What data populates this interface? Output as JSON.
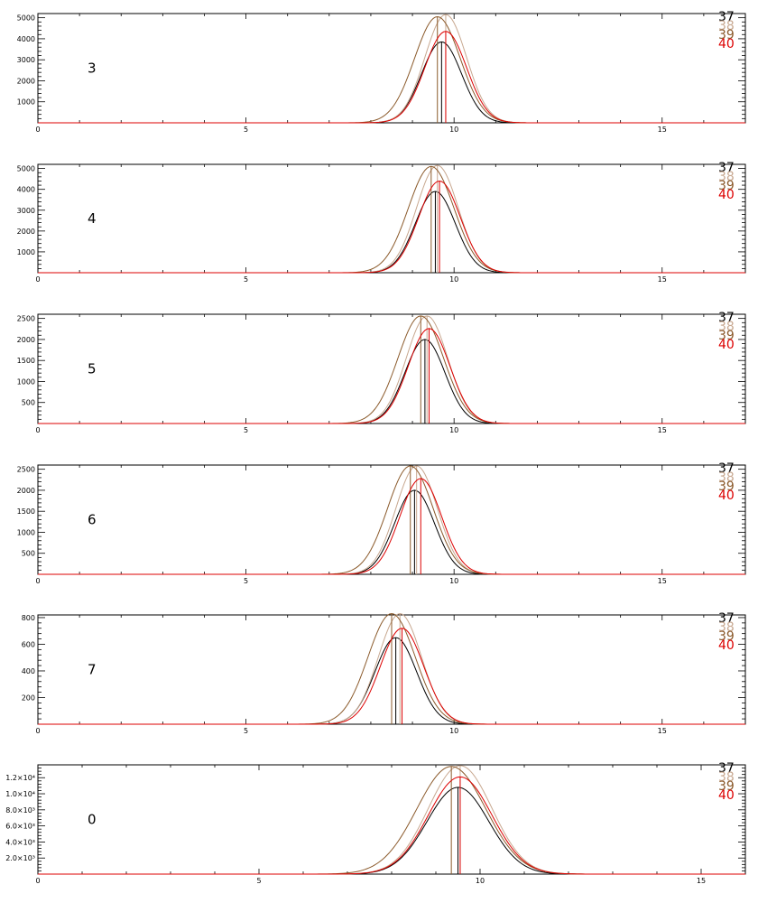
{
  "chart_data": [
    {
      "type": "line",
      "panel_label": "3",
      "xlim": [
        0,
        17
      ],
      "ylim": [
        0,
        5200
      ],
      "xticks": [
        {
          "value": 0,
          "label": "0"
        },
        {
          "value": 5,
          "label": "5"
        },
        {
          "value": 10,
          "label": "10"
        },
        {
          "value": 15,
          "label": "15"
        }
      ],
      "yticks": [
        {
          "value": 1000,
          "label": "1000"
        },
        {
          "value": 2000,
          "label": "2000"
        },
        {
          "value": 3000,
          "label": "3000"
        },
        {
          "value": 4000,
          "label": "4000"
        },
        {
          "value": 5000,
          "label": "5000"
        }
      ],
      "series": [
        {
          "name": "37",
          "color": "#000000",
          "peak_x": 9.7,
          "peak_y": 3850,
          "sigma": 0.48,
          "start_x": 2.5
        },
        {
          "name": "38",
          "color": "#c8a890",
          "peak_x": 9.8,
          "peak_y": 5150,
          "sigma": 0.5,
          "start_x": 2.5
        },
        {
          "name": "39",
          "color": "#8b5a2b",
          "peak_x": 9.6,
          "peak_y": 5050,
          "sigma": 0.55,
          "start_x": 2.5
        },
        {
          "name": "40",
          "color": "#dd0000",
          "peak_x": 9.8,
          "peak_y": 4350,
          "sigma": 0.5,
          "start_x": 0
        }
      ]
    },
    {
      "type": "line",
      "panel_label": "4",
      "xlim": [
        0,
        17
      ],
      "ylim": [
        0,
        5200
      ],
      "xticks": [
        {
          "value": 0,
          "label": "0"
        },
        {
          "value": 5,
          "label": "5"
        },
        {
          "value": 10,
          "label": "10"
        },
        {
          "value": 15,
          "label": "15"
        }
      ],
      "yticks": [
        {
          "value": 1000,
          "label": "1000"
        },
        {
          "value": 2000,
          "label": "2000"
        },
        {
          "value": 3000,
          "label": "3000"
        },
        {
          "value": 4000,
          "label": "4000"
        },
        {
          "value": 5000,
          "label": "5000"
        }
      ],
      "series": [
        {
          "name": "37",
          "color": "#000000",
          "peak_x": 9.55,
          "peak_y": 3900,
          "sigma": 0.48,
          "start_x": 7.2
        },
        {
          "name": "38",
          "color": "#c8a890",
          "peak_x": 9.6,
          "peak_y": 5150,
          "sigma": 0.5,
          "start_x": 7.2
        },
        {
          "name": "39",
          "color": "#8b5a2b",
          "peak_x": 9.45,
          "peak_y": 5100,
          "sigma": 0.55,
          "start_x": 7.2
        },
        {
          "name": "40",
          "color": "#dd0000",
          "peak_x": 9.65,
          "peak_y": 4400,
          "sigma": 0.5,
          "start_x": 0
        }
      ]
    },
    {
      "type": "line",
      "panel_label": "5",
      "xlim": [
        0,
        17
      ],
      "ylim": [
        0,
        2600
      ],
      "xticks": [
        {
          "value": 0,
          "label": "0"
        },
        {
          "value": 5,
          "label": "5"
        },
        {
          "value": 10,
          "label": "10"
        },
        {
          "value": 15,
          "label": "15"
        }
      ],
      "yticks": [
        {
          "value": 500,
          "label": "500"
        },
        {
          "value": 1000,
          "label": "1000"
        },
        {
          "value": 1500,
          "label": "1500"
        },
        {
          "value": 2000,
          "label": "2000"
        },
        {
          "value": 2500,
          "label": "2500"
        }
      ],
      "series": [
        {
          "name": "37",
          "color": "#000000",
          "peak_x": 9.3,
          "peak_y": 2000,
          "sigma": 0.48,
          "start_x": 5.8
        },
        {
          "name": "38",
          "color": "#c8a890",
          "peak_x": 9.35,
          "peak_y": 2560,
          "sigma": 0.5,
          "start_x": 5.8
        },
        {
          "name": "39",
          "color": "#8b5a2b",
          "peak_x": 9.2,
          "peak_y": 2560,
          "sigma": 0.55,
          "start_x": 5.8
        },
        {
          "name": "40",
          "color": "#dd0000",
          "peak_x": 9.4,
          "peak_y": 2260,
          "sigma": 0.5,
          "start_x": 0
        }
      ]
    },
    {
      "type": "line",
      "panel_label": "6",
      "xlim": [
        0,
        17
      ],
      "ylim": [
        0,
        2600
      ],
      "xticks": [
        {
          "value": 0,
          "label": "0"
        },
        {
          "value": 5,
          "label": "5"
        },
        {
          "value": 10,
          "label": "10"
        },
        {
          "value": 15,
          "label": "15"
        }
      ],
      "yticks": [
        {
          "value": 500,
          "label": "500"
        },
        {
          "value": 1000,
          "label": "1000"
        },
        {
          "value": 1500,
          "label": "1500"
        },
        {
          "value": 2000,
          "label": "2000"
        },
        {
          "value": 2500,
          "label": "2500"
        }
      ],
      "series": [
        {
          "name": "37",
          "color": "#000000",
          "peak_x": 9.05,
          "peak_y": 2000,
          "sigma": 0.48,
          "start_x": 2
        },
        {
          "name": "38",
          "color": "#c8a890",
          "peak_x": 9.1,
          "peak_y": 2580,
          "sigma": 0.5,
          "start_x": 2
        },
        {
          "name": "39",
          "color": "#8b5a2b",
          "peak_x": 8.95,
          "peak_y": 2580,
          "sigma": 0.55,
          "start_x": 2
        },
        {
          "name": "40",
          "color": "#dd0000",
          "peak_x": 9.2,
          "peak_y": 2280,
          "sigma": 0.5,
          "start_x": 0
        }
      ]
    },
    {
      "type": "line",
      "panel_label": "7",
      "xlim": [
        0,
        17
      ],
      "ylim": [
        0,
        820
      ],
      "xticks": [
        {
          "value": 0,
          "label": "0"
        },
        {
          "value": 5,
          "label": "5"
        },
        {
          "value": 10,
          "label": "10"
        },
        {
          "value": 15,
          "label": "15"
        }
      ],
      "yticks": [
        {
          "value": 200,
          "label": "200"
        },
        {
          "value": 400,
          "label": "400"
        },
        {
          "value": 600,
          "label": "600"
        },
        {
          "value": 800,
          "label": "800"
        }
      ],
      "series": [
        {
          "name": "37",
          "color": "#000000",
          "peak_x": 8.6,
          "peak_y": 650,
          "sigma": 0.5,
          "start_x": 2
        },
        {
          "name": "38",
          "color": "#c8a890",
          "peak_x": 8.7,
          "peak_y": 830,
          "sigma": 0.52,
          "start_x": 2
        },
        {
          "name": "39",
          "color": "#8b5a2b",
          "peak_x": 8.5,
          "peak_y": 830,
          "sigma": 0.57,
          "start_x": 2
        },
        {
          "name": "40",
          "color": "#dd0000",
          "peak_x": 8.75,
          "peak_y": 720,
          "sigma": 0.52,
          "start_x": 0
        }
      ]
    },
    {
      "type": "line",
      "panel_label": "0",
      "xlim": [
        0,
        16
      ],
      "ylim": [
        0,
        13600
      ],
      "xticks": [
        {
          "value": 0,
          "label": "0"
        },
        {
          "value": 5,
          "label": "5"
        },
        {
          "value": 10,
          "label": "10"
        },
        {
          "value": 15,
          "label": "15"
        }
      ],
      "yticks": [
        {
          "value": 2000,
          "label": "2.0×10³"
        },
        {
          "value": 4000,
          "label": "4.0×10³"
        },
        {
          "value": 6000,
          "label": "6.0×10³"
        },
        {
          "value": 8000,
          "label": "8.0×10³"
        },
        {
          "value": 10000,
          "label": "1.0×10⁴"
        },
        {
          "value": 12000,
          "label": "1.2×10⁴"
        }
      ],
      "series": [
        {
          "name": "37",
          "color": "#000000",
          "peak_x": 9.5,
          "peak_y": 10800,
          "sigma": 0.7,
          "start_x": 6
        },
        {
          "name": "38",
          "color": "#c8a890",
          "peak_x": 9.55,
          "peak_y": 13500,
          "sigma": 0.72,
          "start_x": 6
        },
        {
          "name": "39",
          "color": "#8b5a2b",
          "peak_x": 9.35,
          "peak_y": 13400,
          "sigma": 0.78,
          "start_x": 6
        },
        {
          "name": "40",
          "color": "#dd0000",
          "peak_x": 9.55,
          "peak_y": 12100,
          "sigma": 0.72,
          "start_x": 0
        }
      ]
    }
  ]
}
